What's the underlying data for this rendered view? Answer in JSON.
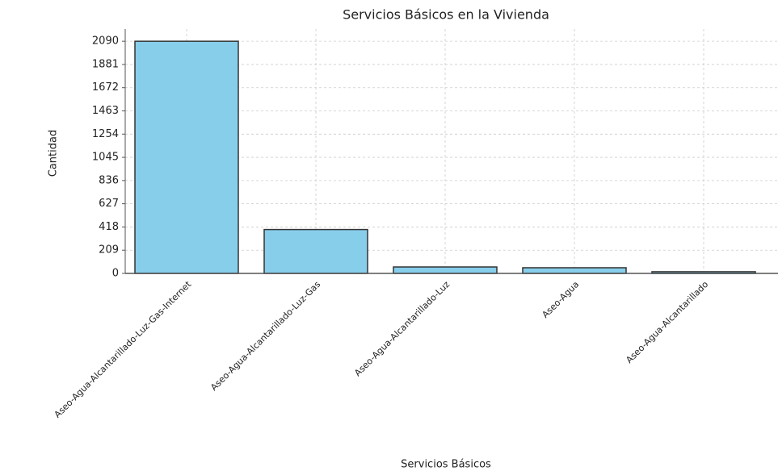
{
  "chart_data": {
    "type": "bar",
    "title": "Servicios Básicos en la Vivienda",
    "x_label": "Servicios Básicos",
    "y_label": "Cantidad",
    "categories": [
      "Aseo-Agua-Alcantarillado-Luz-Gas-Internet",
      "Aseo-Agua-Alcantarillado-Luz-Gas",
      "Aseo-Agua-Alcantarillado-Luz",
      "Aseo-Agua",
      "Aseo-Agua-Alcantarillado"
    ],
    "values": [
      2090,
      395,
      58,
      51,
      15
    ],
    "color": "#87ceeb",
    "edge_color": "#333333",
    "ylim": [
      0,
      2200
    ],
    "yticks": [
      0,
      209,
      418,
      627,
      836,
      1045,
      1254,
      1463,
      1672,
      1881,
      2090
    ],
    "grid": true
  }
}
